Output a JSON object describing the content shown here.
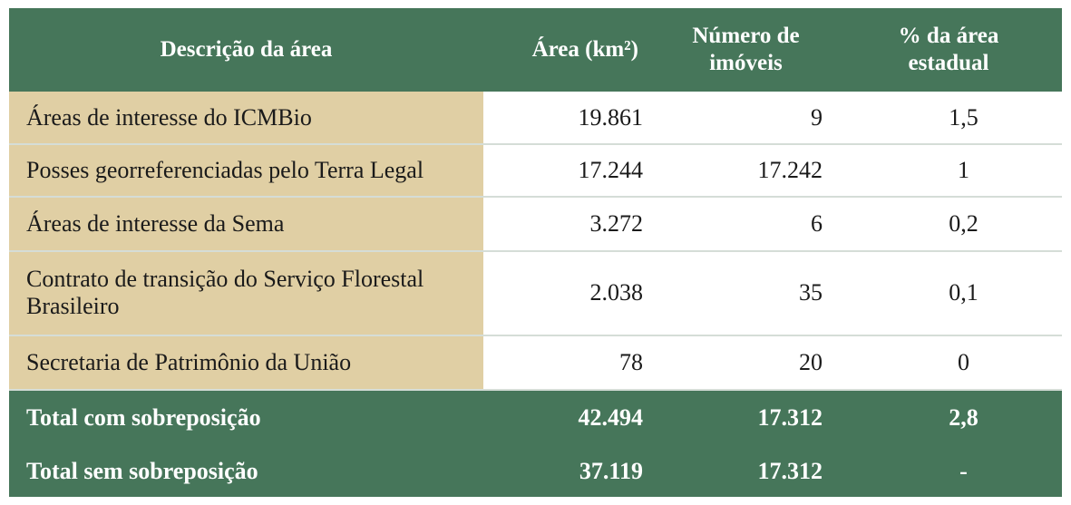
{
  "table": {
    "headers": {
      "description": "Descrição da área",
      "area": "Área (km²)",
      "properties": "Número de imóveis",
      "percent": "% da área estadual"
    },
    "rows": [
      {
        "description": "Áreas de interesse do ICMBio",
        "area": "19.861",
        "properties": "9",
        "percent": "1,5"
      },
      {
        "description": "Posses georreferenciadas pelo Terra Legal",
        "area": "17.244",
        "properties": "17.242",
        "percent": "1"
      },
      {
        "description": "Áreas de interesse da Sema",
        "area": "3.272",
        "properties": "6",
        "percent": "0,2"
      },
      {
        "description": "Contrato de transição do Serviço Florestal Brasileiro",
        "area": "2.038",
        "properties": "35",
        "percent": "0,1"
      },
      {
        "description": "Secretaria de Patrimônio da União",
        "area": "78",
        "properties": "20",
        "percent": "0"
      }
    ],
    "totals": [
      {
        "description": "Total com sobreposição",
        "area": "42.494",
        "properties": "17.312",
        "percent": "2,8"
      },
      {
        "description": "Total sem sobreposição",
        "area": "37.119",
        "properties": "17.312",
        "percent": "-"
      }
    ]
  },
  "colors": {
    "header_green": "#46765a",
    "description_tan": "#e0cfa4",
    "divider": "#d5ddd7"
  }
}
